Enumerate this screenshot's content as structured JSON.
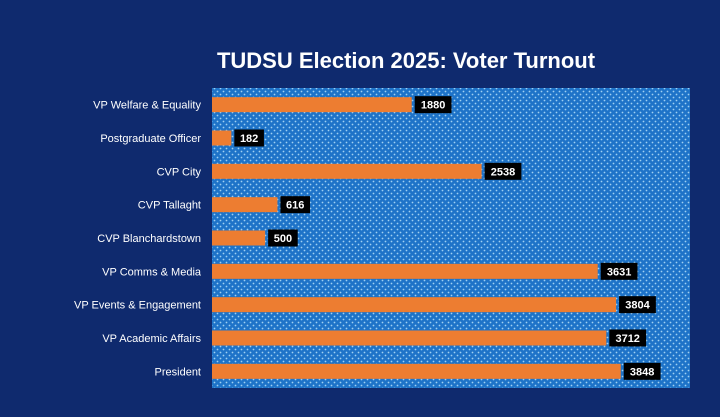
{
  "chart_data": {
    "type": "bar",
    "orientation": "horizontal",
    "title": "TUDSU Election 2025: Voter Turnout",
    "categories": [
      "VP Welfare & Equality",
      "Postgraduate Officer",
      "CVP City",
      "CVP Tallaght",
      "CVP Blanchardstown",
      "VP Comms & Media",
      "VP Events & Engagement",
      "VP Academic Affairs",
      "President"
    ],
    "values": [
      1880,
      182,
      2538,
      616,
      500,
      3631,
      3804,
      3712,
      3848
    ],
    "xlim": [
      0,
      4500
    ],
    "grid": false,
    "legend": "none",
    "colors": {
      "page_background": "#0f2a6e",
      "plot_background": "#1e73c8",
      "plot_dots": "#9fd0f2",
      "bar": "#ed7d31",
      "label_box": "#000000",
      "text": "#ffffff"
    }
  }
}
